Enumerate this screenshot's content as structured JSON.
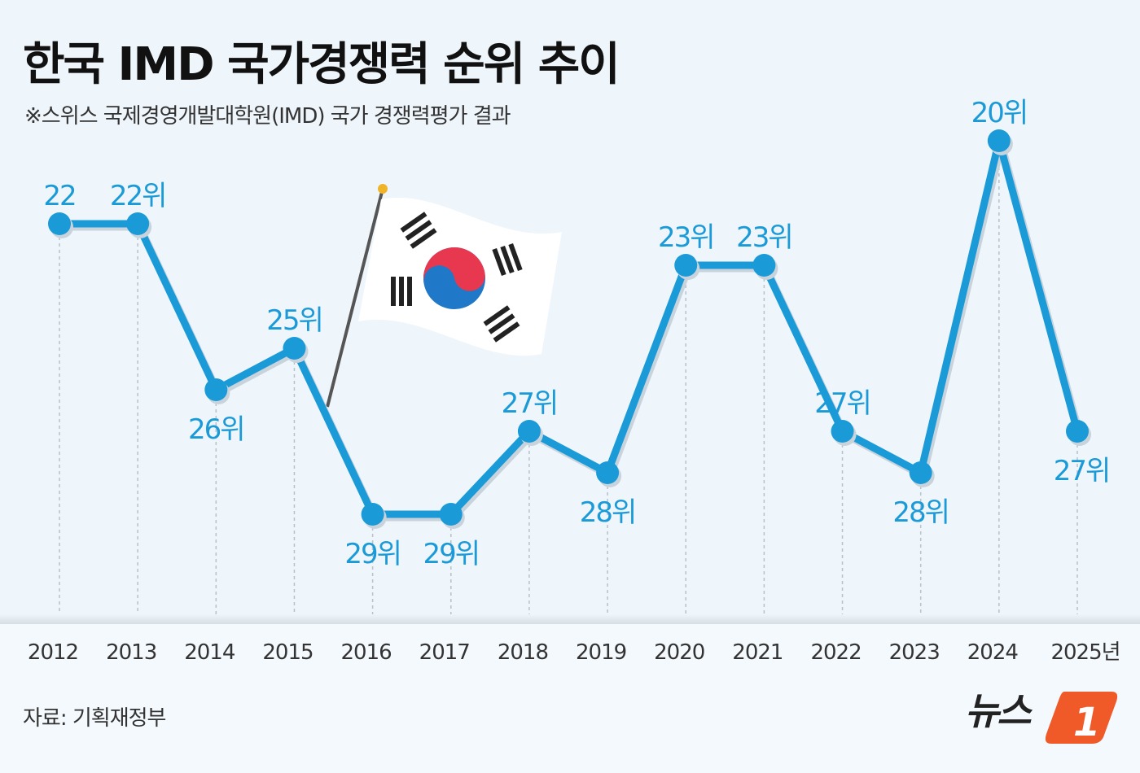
{
  "title": "한국 IMD 국가경쟁력 순위 추이",
  "subtitle": "※스위스 국제경영개발대학원(IMD) 국가 경쟁력평가 결과",
  "source": "자료: 기획재정부",
  "logo": "뉴스1",
  "colors": {
    "line": "#1b9ad8",
    "label": "#1b9ad8",
    "background": "#eef5fb"
  },
  "chart_data": {
    "type": "line",
    "categories": [
      "2012",
      "2013",
      "2014",
      "2015",
      "2016",
      "2017",
      "2018",
      "2019",
      "2020",
      "2021",
      "2022",
      "2023",
      "2024",
      "2025년"
    ],
    "series": [
      {
        "values": [
          22,
          22,
          26,
          25,
          29,
          29,
          27,
          28,
          23,
          23,
          27,
          28,
          20,
          27
        ]
      }
    ],
    "data_labels": [
      "22",
      "22위",
      "26위",
      "25위",
      "29위",
      "29위",
      "27위",
      "28위",
      "23위",
      "23위",
      "27위",
      "28위",
      "20위",
      "27위"
    ],
    "label_positions": [
      "above",
      "above",
      "below",
      "above",
      "below",
      "below",
      "above",
      "below",
      "above",
      "above",
      "above",
      "below",
      "above",
      "below"
    ],
    "y_axis": "rank, inverted (1 at top)",
    "ylim": [
      20,
      29
    ],
    "grid": "vertical dashed lines at each year",
    "legend": "none"
  }
}
